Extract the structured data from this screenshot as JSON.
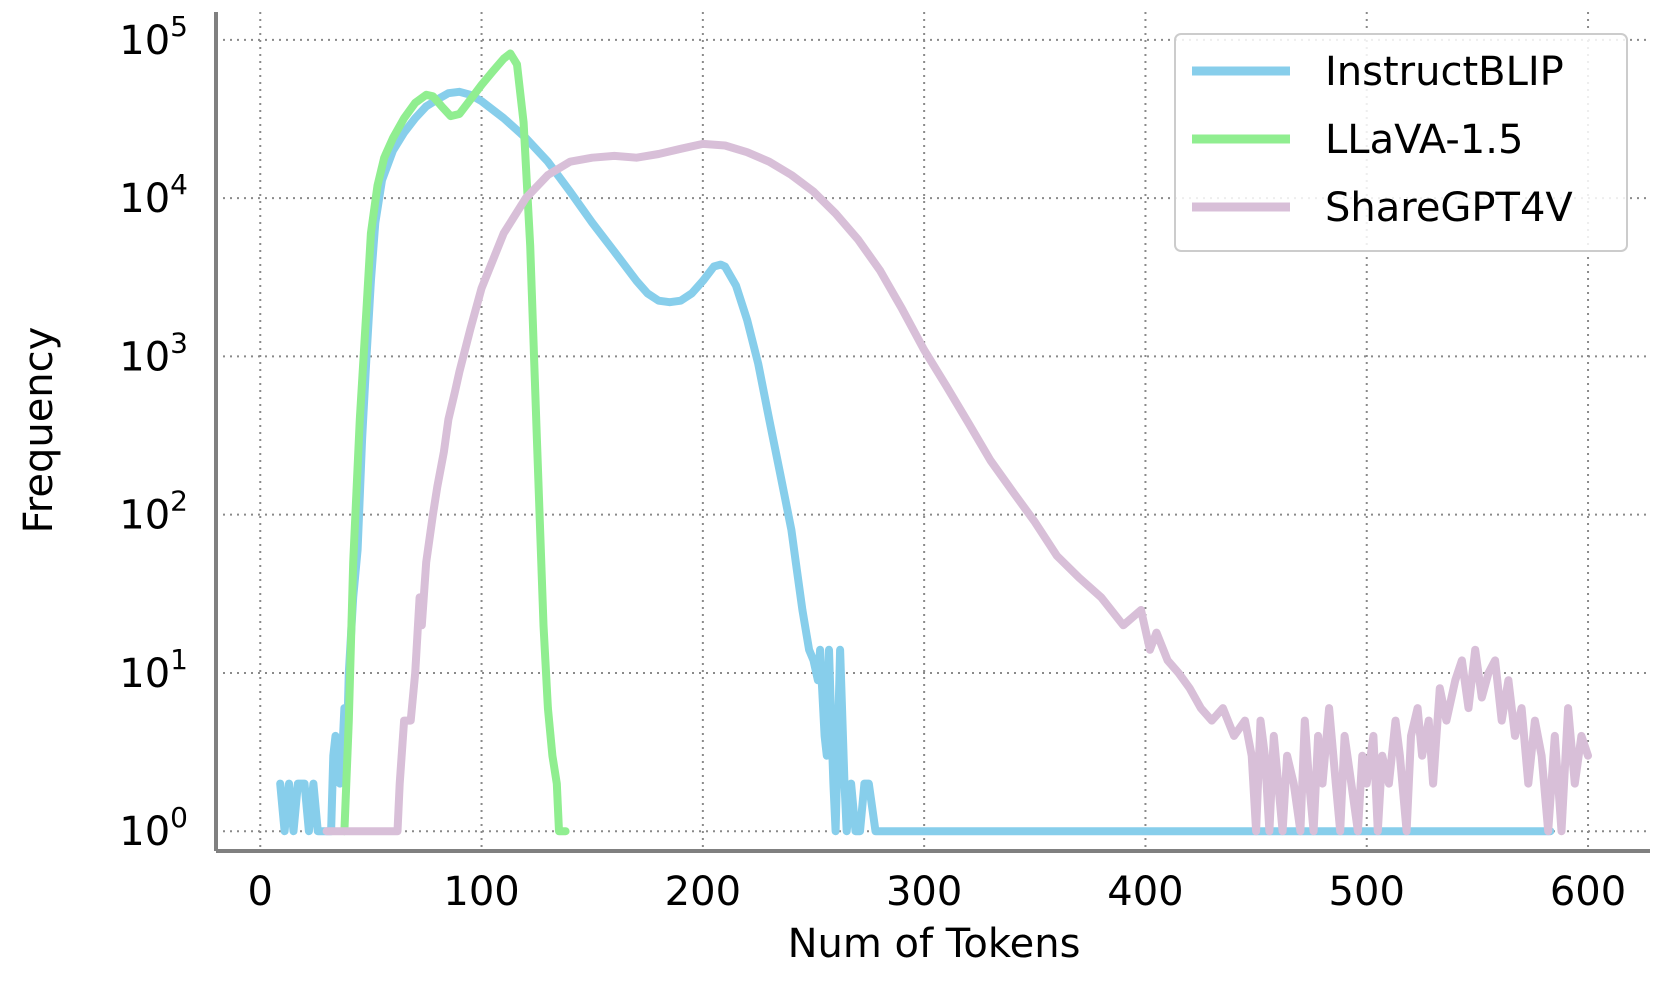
{
  "chart_data": {
    "type": "line",
    "title": "",
    "xlabel": "Num of Tokens",
    "ylabel": "Frequency",
    "xlim": [
      -20,
      628
    ],
    "ylim": [
      0.75,
      150000
    ],
    "yscale": "log",
    "grid": true,
    "legend_position": "top-right",
    "x_ticks": [
      {
        "value": 0,
        "label": "0"
      },
      {
        "value": 100,
        "label": "100"
      },
      {
        "value": 200,
        "label": "200"
      },
      {
        "value": 300,
        "label": "300"
      },
      {
        "value": 400,
        "label": "400"
      },
      {
        "value": 500,
        "label": "500"
      },
      {
        "value": 600,
        "label": "600"
      }
    ],
    "y_ticks": [
      {
        "value": 1,
        "base": "10",
        "exp": "0"
      },
      {
        "value": 10,
        "base": "10",
        "exp": "1"
      },
      {
        "value": 100,
        "base": "10",
        "exp": "2"
      },
      {
        "value": 1000,
        "base": "10",
        "exp": "3"
      },
      {
        "value": 10000,
        "base": "10",
        "exp": "4"
      },
      {
        "value": 100000,
        "base": "10",
        "exp": "5"
      }
    ],
    "series": [
      {
        "name": "InstructBLIP",
        "color": "#87CEEB",
        "points": [
          [
            9,
            2
          ],
          [
            11,
            1
          ],
          [
            13,
            2
          ],
          [
            15,
            1
          ],
          [
            17,
            2
          ],
          [
            20,
            2
          ],
          [
            22,
            1
          ],
          [
            24,
            2
          ],
          [
            26,
            1
          ],
          [
            30,
            1
          ],
          [
            32,
            1
          ],
          [
            33,
            3
          ],
          [
            34,
            4
          ],
          [
            36,
            2
          ],
          [
            37,
            3
          ],
          [
            38,
            6
          ],
          [
            39,
            3
          ],
          [
            40,
            10
          ],
          [
            42,
            30
          ],
          [
            44,
            60
          ],
          [
            46,
            300
          ],
          [
            48,
            1000
          ],
          [
            50,
            3000
          ],
          [
            52,
            7000
          ],
          [
            55,
            13000
          ],
          [
            60,
            20000
          ],
          [
            65,
            26000
          ],
          [
            70,
            32000
          ],
          [
            75,
            38000
          ],
          [
            80,
            42000
          ],
          [
            85,
            46000
          ],
          [
            90,
            47000
          ],
          [
            95,
            45000
          ],
          [
            100,
            41000
          ],
          [
            110,
            32000
          ],
          [
            120,
            24000
          ],
          [
            130,
            17000
          ],
          [
            140,
            11000
          ],
          [
            150,
            7000
          ],
          [
            160,
            4600
          ],
          [
            170,
            3000
          ],
          [
            175,
            2500
          ],
          [
            180,
            2250
          ],
          [
            185,
            2200
          ],
          [
            190,
            2250
          ],
          [
            195,
            2500
          ],
          [
            200,
            3000
          ],
          [
            205,
            3700
          ],
          [
            208,
            3800
          ],
          [
            210,
            3700
          ],
          [
            215,
            2800
          ],
          [
            220,
            1700
          ],
          [
            225,
            900
          ],
          [
            230,
            400
          ],
          [
            235,
            180
          ],
          [
            240,
            80
          ],
          [
            242,
            50
          ],
          [
            245,
            25
          ],
          [
            248,
            14
          ],
          [
            250,
            12
          ],
          [
            252,
            9
          ],
          [
            253,
            14
          ],
          [
            255,
            4
          ],
          [
            256,
            3
          ],
          [
            257,
            14
          ],
          [
            258,
            5
          ],
          [
            259,
            2
          ],
          [
            260,
            1
          ],
          [
            262,
            14
          ],
          [
            264,
            2
          ],
          [
            265,
            1
          ],
          [
            267,
            2
          ],
          [
            269,
            1
          ],
          [
            271,
            1
          ],
          [
            273,
            2
          ],
          [
            275,
            2
          ],
          [
            278,
            1
          ],
          [
            300,
            1
          ],
          [
            400,
            1
          ],
          [
            500,
            1
          ],
          [
            583,
            1
          ]
        ]
      },
      {
        "name": "LLaVA-1.5",
        "color": "#90EE90",
        "points": [
          [
            38,
            1
          ],
          [
            40,
            5
          ],
          [
            42,
            50
          ],
          [
            45,
            400
          ],
          [
            48,
            2000
          ],
          [
            50,
            6000
          ],
          [
            53,
            12000
          ],
          [
            56,
            18000
          ],
          [
            60,
            24000
          ],
          [
            65,
            32000
          ],
          [
            70,
            40000
          ],
          [
            75,
            45000
          ],
          [
            78,
            44000
          ],
          [
            82,
            38000
          ],
          [
            86,
            33000
          ],
          [
            90,
            34000
          ],
          [
            95,
            42000
          ],
          [
            100,
            52000
          ],
          [
            105,
            63000
          ],
          [
            110,
            76000
          ],
          [
            113,
            82000
          ],
          [
            116,
            70000
          ],
          [
            119,
            30000
          ],
          [
            122,
            5000
          ],
          [
            125,
            300
          ],
          [
            128,
            20
          ],
          [
            130,
            6
          ],
          [
            132,
            3
          ],
          [
            134,
            2
          ],
          [
            135,
            1
          ],
          [
            138,
            1
          ]
        ]
      },
      {
        "name": "ShareGPT4V",
        "color": "#D8BFD8",
        "points": [
          [
            30,
            1
          ],
          [
            40,
            1
          ],
          [
            50,
            1
          ],
          [
            62,
            1
          ],
          [
            63,
            2
          ],
          [
            65,
            5
          ],
          [
            68,
            5
          ],
          [
            70,
            10
          ],
          [
            72,
            30
          ],
          [
            73,
            20
          ],
          [
            75,
            50
          ],
          [
            78,
            100
          ],
          [
            80,
            150
          ],
          [
            83,
            250
          ],
          [
            85,
            400
          ],
          [
            88,
            600
          ],
          [
            90,
            800
          ],
          [
            95,
            1500
          ],
          [
            100,
            2700
          ],
          [
            110,
            6000
          ],
          [
            120,
            10000
          ],
          [
            130,
            14000
          ],
          [
            140,
            17000
          ],
          [
            150,
            18000
          ],
          [
            160,
            18500
          ],
          [
            170,
            18000
          ],
          [
            180,
            19000
          ],
          [
            190,
            20500
          ],
          [
            200,
            22000
          ],
          [
            210,
            21500
          ],
          [
            220,
            19500
          ],
          [
            230,
            17000
          ],
          [
            240,
            14000
          ],
          [
            250,
            11000
          ],
          [
            260,
            8000
          ],
          [
            270,
            5500
          ],
          [
            280,
            3500
          ],
          [
            290,
            2000
          ],
          [
            300,
            1100
          ],
          [
            310,
            650
          ],
          [
            320,
            380
          ],
          [
            330,
            220
          ],
          [
            340,
            140
          ],
          [
            350,
            90
          ],
          [
            360,
            55
          ],
          [
            370,
            40
          ],
          [
            380,
            30
          ],
          [
            390,
            20
          ],
          [
            398,
            25
          ],
          [
            402,
            14
          ],
          [
            405,
            18
          ],
          [
            410,
            12
          ],
          [
            415,
            10
          ],
          [
            420,
            8
          ],
          [
            425,
            6
          ],
          [
            430,
            5
          ],
          [
            435,
            6
          ],
          [
            440,
            4
          ],
          [
            445,
            5
          ],
          [
            448,
            3
          ],
          [
            450,
            1
          ],
          [
            452,
            5
          ],
          [
            454,
            3
          ],
          [
            456,
            1
          ],
          [
            458,
            4
          ],
          [
            460,
            2
          ],
          [
            462,
            1
          ],
          [
            464,
            3
          ],
          [
            467,
            2
          ],
          [
            470,
            1
          ],
          [
            472,
            5
          ],
          [
            474,
            2
          ],
          [
            476,
            1
          ],
          [
            478,
            4
          ],
          [
            480,
            2
          ],
          [
            483,
            6
          ],
          [
            486,
            2
          ],
          [
            488,
            1
          ],
          [
            490,
            4
          ],
          [
            493,
            2
          ],
          [
            496,
            1
          ],
          [
            498,
            3
          ],
          [
            500,
            2
          ],
          [
            503,
            4
          ],
          [
            505,
            1
          ],
          [
            507,
            3
          ],
          [
            510,
            2
          ],
          [
            513,
            5
          ],
          [
            515,
            3
          ],
          [
            518,
            1
          ],
          [
            520,
            4
          ],
          [
            523,
            6
          ],
          [
            525,
            3
          ],
          [
            528,
            5
          ],
          [
            530,
            2
          ],
          [
            533,
            8
          ],
          [
            536,
            5
          ],
          [
            540,
            9
          ],
          [
            543,
            12
          ],
          [
            546,
            6
          ],
          [
            549,
            14
          ],
          [
            552,
            7
          ],
          [
            555,
            10
          ],
          [
            558,
            12
          ],
          [
            561,
            5
          ],
          [
            564,
            9
          ],
          [
            567,
            4
          ],
          [
            570,
            6
          ],
          [
            573,
            2
          ],
          [
            576,
            5
          ],
          [
            579,
            3
          ],
          [
            582,
            1
          ],
          [
            585,
            4
          ],
          [
            588,
            1
          ],
          [
            591,
            6
          ],
          [
            594,
            2
          ],
          [
            597,
            4
          ],
          [
            600,
            3
          ]
        ]
      }
    ]
  }
}
